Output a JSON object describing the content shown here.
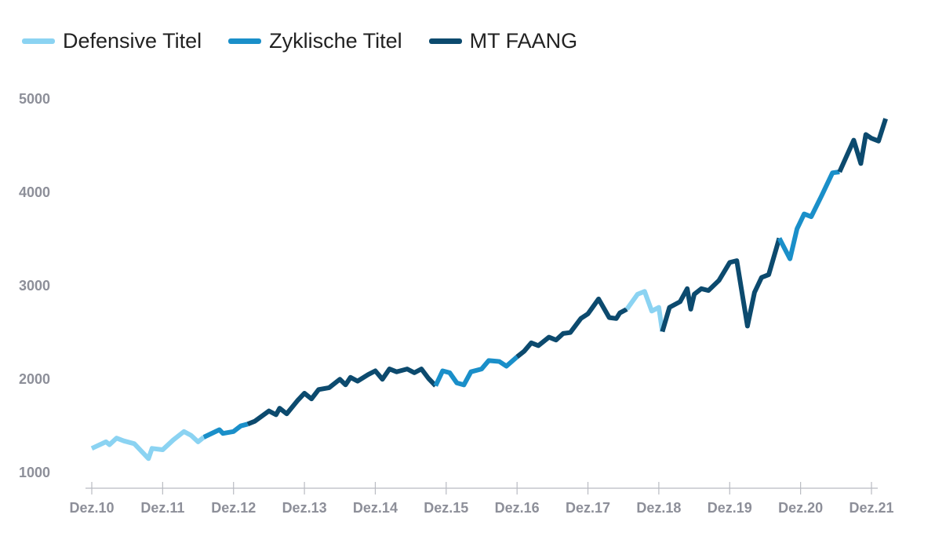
{
  "chart_data": {
    "type": "line",
    "title": "",
    "xlabel": "",
    "ylabel": "",
    "ylim": [
      1000,
      5000
    ],
    "yticks": [
      "1000",
      "2000",
      "3000",
      "4000",
      "5000"
    ],
    "xticks": [
      "Dez.10",
      "Dez.11",
      "Dez.12",
      "Dez.13",
      "Dez.14",
      "Dez.15",
      "Dez.16",
      "Dez.17",
      "Dez.18",
      "Dez.19",
      "Dez.20",
      "Dez.21"
    ],
    "grid": false,
    "legend_position": "top-left",
    "colors": {
      "Defensive Titel": "#8bd3f2",
      "Zyklische Titel": "#1a8fc9",
      "MT FAANG": "#0c4a6e"
    },
    "series": [
      {
        "name": "Defensive Titel",
        "x": [
          2010.0,
          2010.2,
          2010.25,
          2010.35,
          2010.45,
          2010.6,
          2010.8,
          2010.85,
          2011.0,
          2011.15,
          2011.3,
          2011.4,
          2011.5,
          2011.58
        ],
        "values": [
          1250,
          1320,
          1290,
          1360,
          1330,
          1300,
          1140,
          1250,
          1235,
          1340,
          1430,
          1390,
          1320,
          1370
        ]
      },
      {
        "name": "Zyklische Titel",
        "x": [
          2011.58,
          2011.8,
          2011.85,
          2012.0,
          2012.1,
          2012.2
        ],
        "values": [
          1370,
          1450,
          1410,
          1430,
          1490,
          1510
        ]
      },
      {
        "name": "MT FAANG",
        "x": [
          2012.2,
          2012.3,
          2012.5,
          2012.6,
          2012.65,
          2012.75,
          2012.9,
          2013.0,
          2013.1,
          2013.2,
          2013.35,
          2013.5,
          2013.58,
          2013.65,
          2013.75,
          2013.9,
          2014.0,
          2014.1,
          2014.2,
          2014.3,
          2014.45,
          2014.55,
          2014.65,
          2014.75,
          2014.85
        ],
        "values": [
          1510,
          1540,
          1650,
          1610,
          1680,
          1620,
          1760,
          1840,
          1780,
          1880,
          1900,
          1990,
          1930,
          2010,
          1970,
          2040,
          2080,
          1990,
          2100,
          2070,
          2100,
          2060,
          2100,
          2000,
          1920
        ]
      },
      {
        "name": "Zyklische Titel",
        "x": [
          2014.85,
          2014.95,
          2015.05,
          2015.15,
          2015.25,
          2015.35,
          2015.5,
          2015.6,
          2015.75,
          2015.85,
          2016.0
        ],
        "values": [
          1920,
          2080,
          2060,
          1950,
          1930,
          2070,
          2100,
          2190,
          2180,
          2130,
          2230
        ]
      },
      {
        "name": "MT FAANG",
        "x": [
          2016.0,
          2016.1,
          2016.2,
          2016.3,
          2016.45,
          2016.55,
          2016.65,
          2016.75,
          2016.9,
          2017.0,
          2017.15,
          2017.3,
          2017.4,
          2017.45,
          2017.55
        ],
        "values": [
          2230,
          2290,
          2380,
          2350,
          2440,
          2410,
          2480,
          2490,
          2640,
          2690,
          2850,
          2650,
          2640,
          2700,
          2740
        ]
      },
      {
        "name": "Defensive Titel",
        "x": [
          2017.55,
          2017.7,
          2017.8,
          2017.9,
          2018.0,
          2018.05
        ],
        "values": [
          2740,
          2900,
          2930,
          2720,
          2760,
          2500
        ]
      },
      {
        "name": "MT FAANG",
        "x": [
          2018.05,
          2018.15,
          2018.3,
          2018.4,
          2018.45,
          2018.5,
          2018.6,
          2018.7,
          2018.85,
          2019.0,
          2019.1,
          2019.25,
          2019.35,
          2019.45,
          2019.55,
          2019.7
        ],
        "values": [
          2500,
          2760,
          2820,
          2960,
          2740,
          2900,
          2960,
          2940,
          3050,
          3240,
          3260,
          2560,
          2920,
          3080,
          3110,
          3500
        ]
      },
      {
        "name": "Zyklische Titel",
        "x": [
          2019.7,
          2019.85,
          2019.95,
          2020.05,
          2020.15,
          2020.3,
          2020.45,
          2020.55
        ],
        "values": [
          3500,
          3280,
          3600,
          3760,
          3730,
          3960,
          4200,
          4210
        ]
      },
      {
        "name": "MT FAANG",
        "x": [
          2020.55,
          2020.75,
          2020.85,
          2020.92,
          2021.0,
          2021.1,
          2021.2
        ],
        "values": [
          4210,
          4550,
          4300,
          4610,
          4570,
          4540,
          4780
        ]
      }
    ]
  }
}
